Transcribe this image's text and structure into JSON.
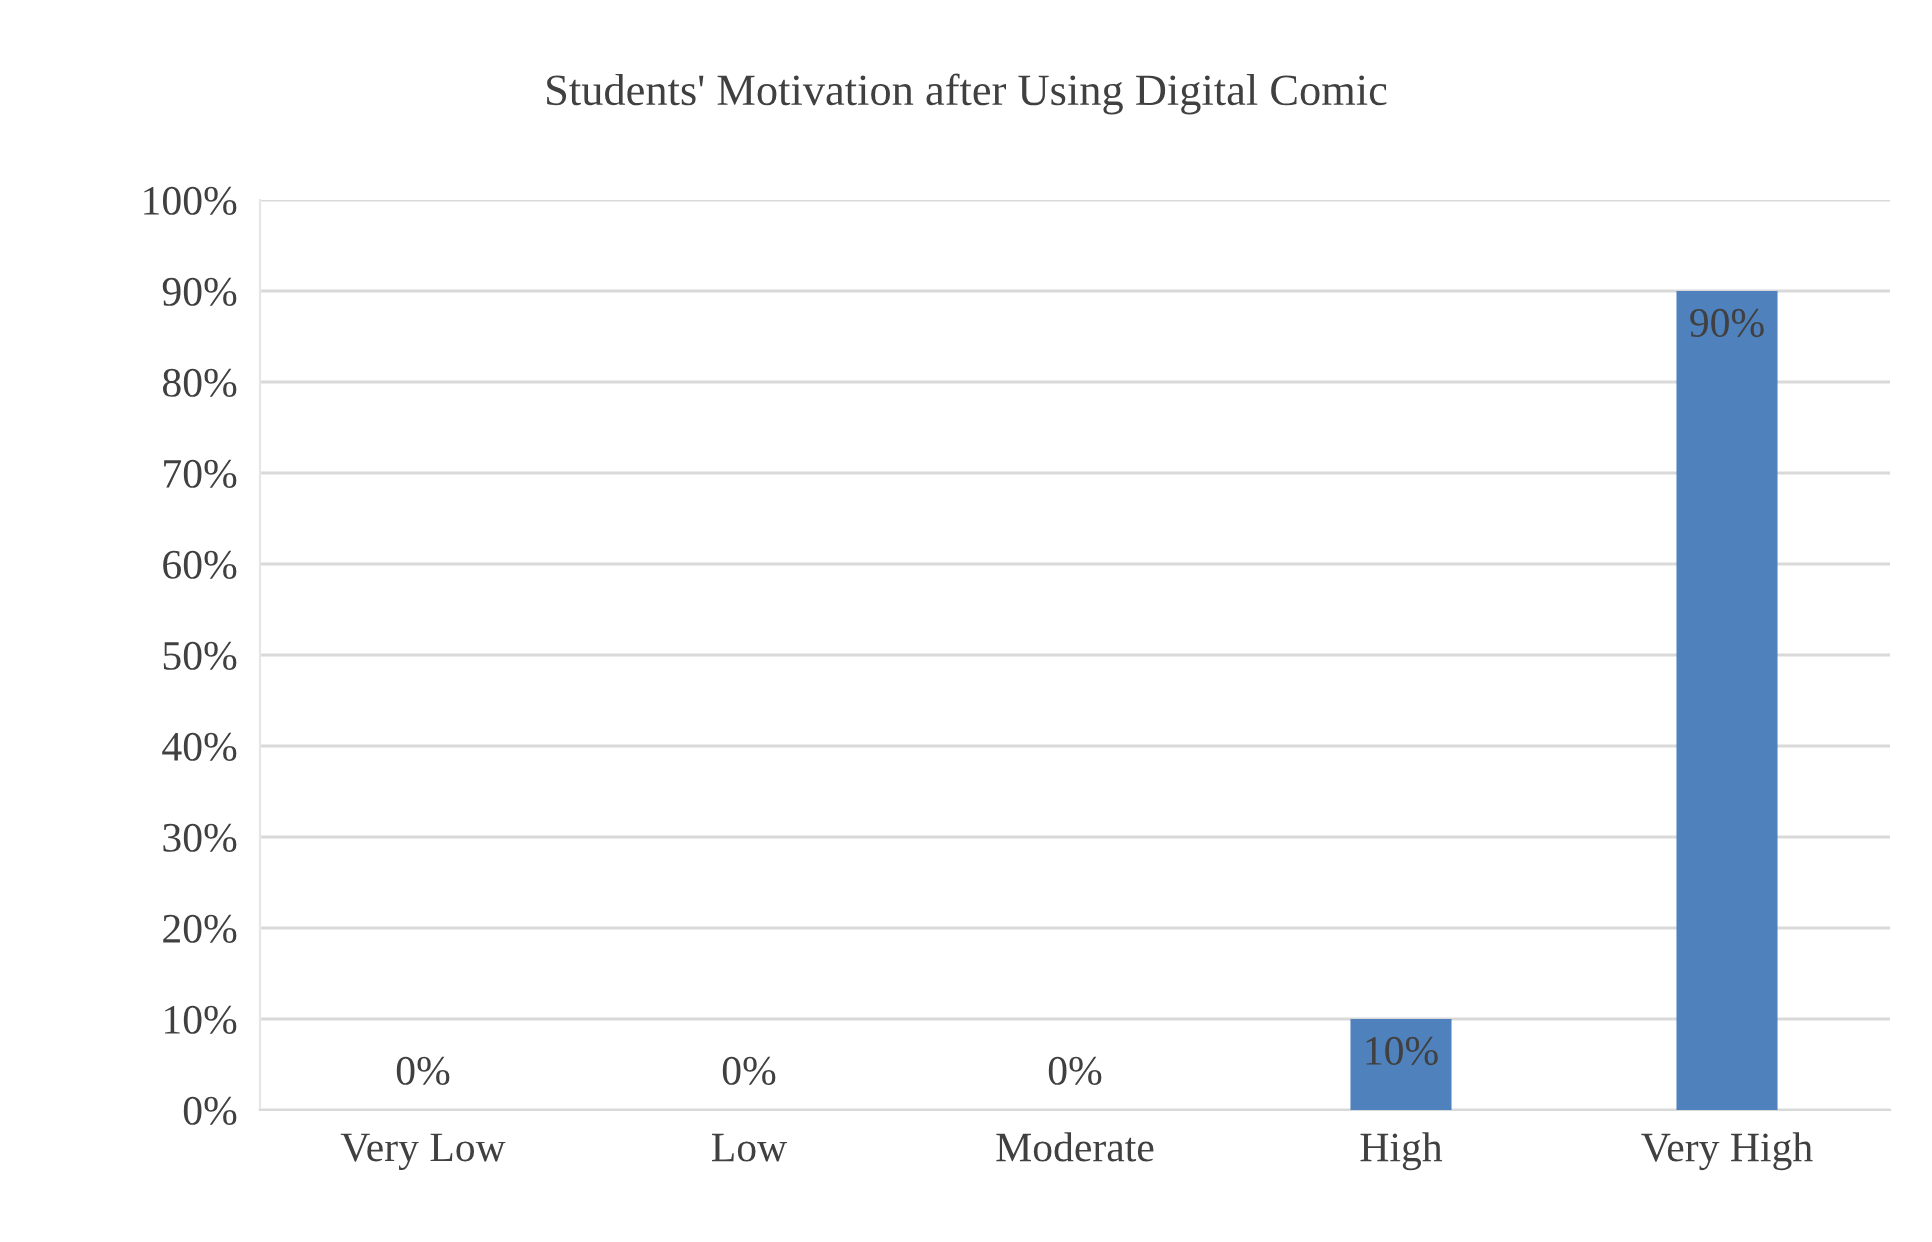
{
  "chart_data": {
    "type": "bar",
    "title": "Students' Motivation after Using Digital Comic",
    "categories": [
      "Very Low",
      "Low",
      "Moderate",
      "High",
      "Very High"
    ],
    "values": [
      0,
      0,
      0,
      10,
      90
    ],
    "value_labels": [
      "0%",
      "0%",
      "0%",
      "10%",
      "90%"
    ],
    "color": "#4f81bd",
    "ylim": [
      0,
      100
    ],
    "yticks": [
      {
        "value": 0,
        "label": "0%"
      },
      {
        "value": 10,
        "label": "10%"
      },
      {
        "value": 20,
        "label": "20%"
      },
      {
        "value": 30,
        "label": "30%"
      },
      {
        "value": 40,
        "label": "40%"
      },
      {
        "value": 50,
        "label": "50%"
      },
      {
        "value": 60,
        "label": "60%"
      },
      {
        "value": 70,
        "label": "70%"
      },
      {
        "value": 80,
        "label": "80%"
      },
      {
        "value": 90,
        "label": "90%"
      },
      {
        "value": 100,
        "label": "100%"
      }
    ],
    "grid": "y"
  }
}
